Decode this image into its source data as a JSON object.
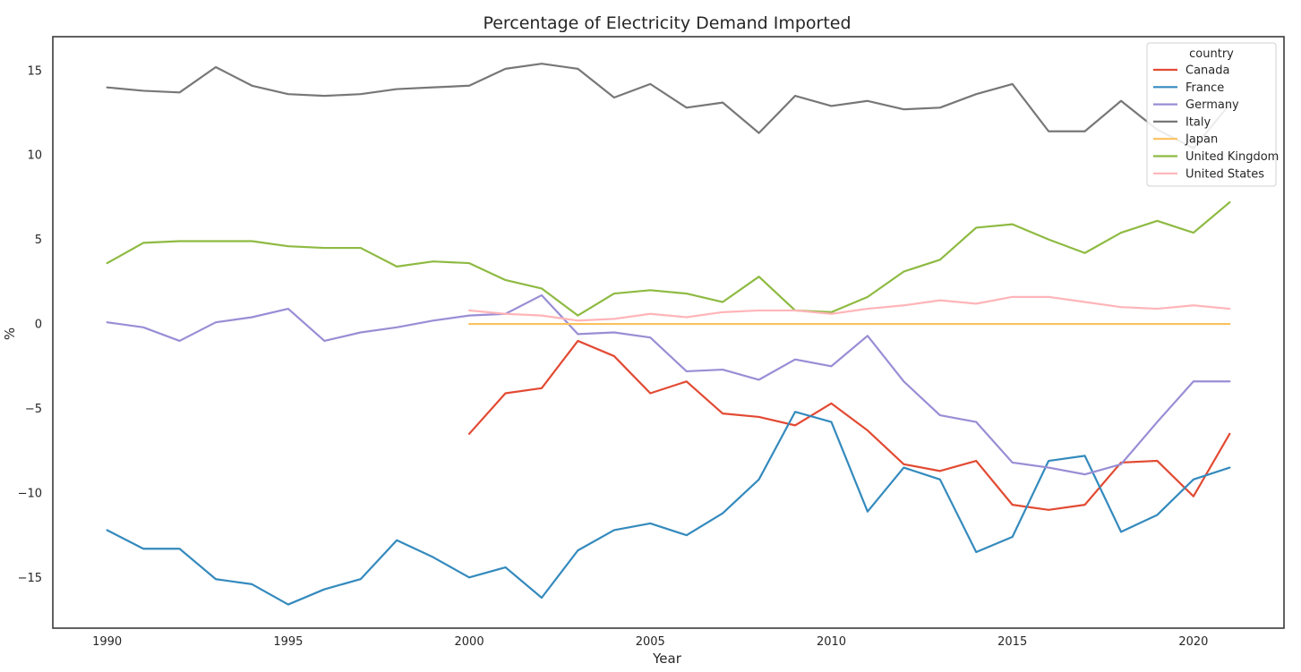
{
  "chart_data": {
    "type": "line",
    "title": "Percentage of Electricity Demand Imported",
    "xlabel": "Year",
    "ylabel": "%",
    "xlim": [
      1988.5,
      2022.5
    ],
    "ylim": [
      -18,
      17
    ],
    "xticks": [
      1990,
      1995,
      2000,
      2005,
      2010,
      2015,
      2020
    ],
    "yticks": [
      -15,
      -10,
      -5,
      0,
      5,
      10,
      15
    ],
    "xtick_labels": [
      "1990",
      "1995",
      "2000",
      "2005",
      "2010",
      "2015",
      "2020"
    ],
    "ytick_labels": [
      "−15",
      "−10",
      "−5",
      "0",
      "5",
      "10",
      "15"
    ],
    "grid": false,
    "legend": {
      "title": "country",
      "placement": "top-right"
    },
    "series": [
      {
        "name": "Canada",
        "color": "#e24a33",
        "x": [
          2000,
          2001,
          2002,
          2003,
          2004,
          2005,
          2006,
          2007,
          2008,
          2009,
          2010,
          2011,
          2012,
          2013,
          2014,
          2015,
          2016,
          2017,
          2018,
          2019,
          2020,
          2021
        ],
        "y": [
          -6.5,
          -4.1,
          -3.8,
          -1.0,
          -1.9,
          -4.1,
          -3.4,
          -5.3,
          -5.5,
          -6.0,
          -4.7,
          -6.3,
          -8.3,
          -8.7,
          -8.1,
          -10.7,
          -11.0,
          -10.7,
          -8.2,
          -8.1,
          -10.2,
          -6.5
        ]
      },
      {
        "name": "France",
        "color": "#348abd",
        "x": [
          1990,
          1991,
          1992,
          1993,
          1994,
          1995,
          1996,
          1997,
          1998,
          1999,
          2000,
          2001,
          2002,
          2003,
          2004,
          2005,
          2006,
          2007,
          2008,
          2009,
          2010,
          2011,
          2012,
          2013,
          2014,
          2015,
          2016,
          2017,
          2018,
          2019,
          2020,
          2021
        ],
        "y": [
          -12.2,
          -13.3,
          -13.3,
          -15.1,
          -15.4,
          -16.6,
          -15.7,
          -15.1,
          -12.8,
          -13.8,
          -15.0,
          -14.4,
          -16.2,
          -13.4,
          -12.2,
          -11.8,
          -12.5,
          -11.2,
          -9.2,
          -5.2,
          -5.8,
          -11.1,
          -8.5,
          -9.2,
          -13.5,
          -12.6,
          -8.1,
          -7.8,
          -12.3,
          -11.3,
          -9.2,
          -8.5
        ]
      },
      {
        "name": "Germany",
        "color": "#988ed5",
        "x": [
          1990,
          1991,
          1992,
          1993,
          1994,
          1995,
          1996,
          1997,
          1998,
          1999,
          2000,
          2001,
          2002,
          2003,
          2004,
          2005,
          2006,
          2007,
          2008,
          2009,
          2010,
          2011,
          2012,
          2013,
          2014,
          2015,
          2016,
          2017,
          2018,
          2019,
          2020,
          2021
        ],
        "y": [
          0.1,
          -0.2,
          -1.0,
          0.1,
          0.4,
          0.9,
          -1.0,
          -0.5,
          -0.2,
          0.2,
          0.5,
          0.6,
          1.7,
          -0.6,
          -0.5,
          -0.8,
          -2.8,
          -2.7,
          -3.3,
          -2.1,
          -2.5,
          -0.7,
          -3.4,
          -5.4,
          -5.8,
          -8.2,
          -8.5,
          -8.9,
          -8.3,
          -5.8,
          -3.4,
          -3.4
        ]
      },
      {
        "name": "Italy",
        "color": "#777777",
        "x": [
          1990,
          1991,
          1992,
          1993,
          1994,
          1995,
          1996,
          1997,
          1998,
          1999,
          2000,
          2001,
          2002,
          2003,
          2004,
          2005,
          2006,
          2007,
          2008,
          2009,
          2010,
          2011,
          2012,
          2013,
          2014,
          2015,
          2016,
          2017,
          2018,
          2019,
          2020,
          2021
        ],
        "y": [
          14.0,
          13.8,
          13.7,
          15.2,
          14.1,
          13.6,
          13.5,
          13.6,
          13.9,
          14.0,
          14.1,
          15.1,
          15.4,
          15.1,
          13.4,
          14.2,
          12.8,
          13.1,
          11.3,
          13.5,
          12.9,
          13.2,
          12.7,
          12.8,
          13.6,
          14.2,
          11.4,
          11.4,
          13.2,
          11.5,
          10.4,
          13.0
        ]
      },
      {
        "name": "Japan",
        "color": "#fbc15e",
        "x": [
          2000,
          2001,
          2002,
          2003,
          2004,
          2005,
          2006,
          2007,
          2008,
          2009,
          2010,
          2011,
          2012,
          2013,
          2014,
          2015,
          2016,
          2017,
          2018,
          2019,
          2020,
          2021
        ],
        "y": [
          0,
          0,
          0,
          0,
          0,
          0,
          0,
          0,
          0,
          0,
          0,
          0,
          0,
          0,
          0,
          0,
          0,
          0,
          0,
          0,
          0,
          0
        ]
      },
      {
        "name": "United Kingdom",
        "color": "#8eba42",
        "x": [
          1990,
          1991,
          1992,
          1993,
          1994,
          1995,
          1996,
          1997,
          1998,
          1999,
          2000,
          2001,
          2002,
          2003,
          2004,
          2005,
          2006,
          2007,
          2008,
          2009,
          2010,
          2011,
          2012,
          2013,
          2014,
          2015,
          2016,
          2017,
          2018,
          2019,
          2020,
          2021
        ],
        "y": [
          3.6,
          4.8,
          4.9,
          4.9,
          4.9,
          4.6,
          4.5,
          4.5,
          3.4,
          3.7,
          3.6,
          2.6,
          2.1,
          0.5,
          1.8,
          2.0,
          1.8,
          1.3,
          2.8,
          0.8,
          0.7,
          1.6,
          3.1,
          3.8,
          5.7,
          5.9,
          5.0,
          4.2,
          5.4,
          6.1,
          5.4,
          7.2
        ]
      },
      {
        "name": "United States",
        "color": "#ffb5b8",
        "x": [
          2000,
          2001,
          2002,
          2003,
          2004,
          2005,
          2006,
          2007,
          2008,
          2009,
          2010,
          2011,
          2012,
          2013,
          2014,
          2015,
          2016,
          2017,
          2018,
          2019,
          2020,
          2021
        ],
        "y": [
          0.8,
          0.6,
          0.5,
          0.2,
          0.3,
          0.6,
          0.4,
          0.7,
          0.8,
          0.8,
          0.6,
          0.9,
          1.1,
          1.4,
          1.2,
          1.6,
          1.6,
          1.3,
          1.0,
          0.9,
          1.1,
          0.9
        ]
      }
    ]
  }
}
